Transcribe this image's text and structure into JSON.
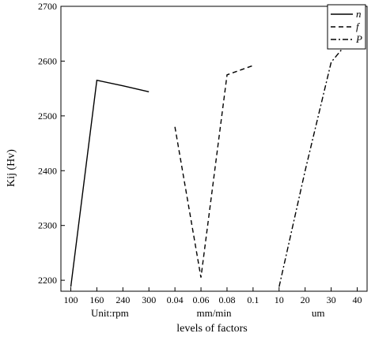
{
  "chart_data": {
    "type": "line",
    "ylabel": "Kij (Hv)",
    "xlabel": "levels of factors",
    "ylim": [
      2180,
      2700
    ],
    "yticks": [
      2200,
      2300,
      2400,
      2500,
      2600,
      2700
    ],
    "grid": false,
    "legend_position": "top-right",
    "groups": [
      {
        "unit_label": "Unit:rpm",
        "ticks": [
          "100",
          "160",
          "240",
          "300"
        ]
      },
      {
        "unit_label": "mm/min",
        "ticks": [
          "0.04",
          "0.06",
          "0.08",
          "0.1"
        ]
      },
      {
        "unit_label": "um",
        "ticks": [
          "10",
          "20",
          "30",
          "40"
        ]
      }
    ],
    "series": [
      {
        "name": "n",
        "dash": "solid",
        "group": 0,
        "values": [
          2188,
          2565,
          2555,
          2544
        ]
      },
      {
        "name": "f",
        "dash": "dash",
        "group": 1,
        "values": [
          2480,
          2205,
          2575,
          2592
        ]
      },
      {
        "name": "P",
        "dash": "dashdot",
        "group": 2,
        "values": [
          2188,
          2400,
          2598,
          2655
        ]
      }
    ]
  }
}
